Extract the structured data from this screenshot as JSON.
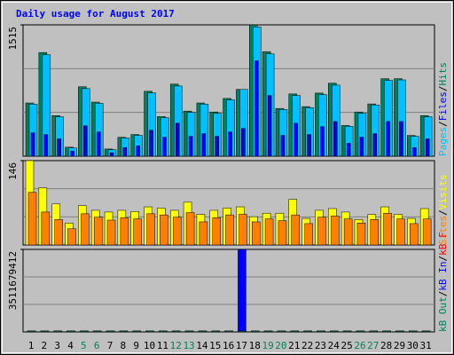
{
  "chart_data": [
    {
      "type": "bar",
      "title": "Daily usage for August 2017",
      "categories": [
        "1",
        "2",
        "3",
        "4",
        "5",
        "6",
        "7",
        "8",
        "9",
        "10",
        "11",
        "12",
        "13",
        "14",
        "15",
        "16",
        "17",
        "18",
        "19",
        "20",
        "21",
        "22",
        "23",
        "24",
        "25",
        "26",
        "27",
        "28",
        "29",
        "30",
        "31"
      ],
      "weekend_color": "#00805c",
      "weekends": [
        5,
        6,
        12,
        13,
        19,
        20,
        26,
        27
      ],
      "legend_separator": "/",
      "ylim": [
        0,
        1515
      ],
      "yticks": [
        1515
      ],
      "series": [
        {
          "name": "Hits",
          "color": "#00805c",
          "values": [
            614,
            1196,
            468,
            104,
            801,
            624,
            83,
            218,
            250,
            749,
            458,
            832,
            520,
            614,
            510,
            666,
            770,
            1515,
            1206,
            551,
            718,
            572,
            728,
            842,
            354,
            510,
            603,
            894,
            894,
            239,
            468
          ]
        },
        {
          "name": "Pages",
          "color": "#00c0ff",
          "values": [
            600,
            1170,
            455,
            95,
            780,
            610,
            75,
            210,
            240,
            730,
            445,
            810,
            505,
            600,
            495,
            650,
            770,
            1490,
            1180,
            540,
            700,
            560,
            710,
            820,
            345,
            495,
            590,
            875,
            880,
            230,
            455
          ]
        },
        {
          "name": "Files",
          "color": "#0000ff",
          "values": [
            270,
            250,
            200,
            60,
            350,
            280,
            40,
            100,
            120,
            300,
            220,
            380,
            230,
            260,
            230,
            280,
            320,
            1100,
            700,
            240,
            380,
            250,
            340,
            400,
            150,
            220,
            260,
            400,
            400,
            100,
            200
          ]
        }
      ]
    },
    {
      "type": "bar",
      "ylim": [
        0,
        146
      ],
      "yticks": [
        146
      ],
      "series": [
        {
          "name": "Visits",
          "color": "#ffff00",
          "values": [
            146,
            99,
            71,
            38,
            68,
            60,
            57,
            60,
            58,
            66,
            64,
            60,
            74,
            53,
            60,
            64,
            66,
            49,
            55,
            55,
            79,
            46,
            60,
            63,
            57,
            44,
            53,
            66,
            53,
            46,
            63
          ]
        },
        {
          "name": "Sites",
          "color": "#ff8000",
          "values": [
            91,
            57,
            44,
            28,
            54,
            48,
            43,
            47,
            45,
            54,
            52,
            48,
            56,
            40,
            47,
            52,
            53,
            40,
            45,
            42,
            52,
            37,
            48,
            50,
            45,
            38,
            44,
            55,
            45,
            37,
            45
          ]
        }
      ]
    },
    {
      "type": "bar",
      "ylim": [
        0,
        3511679412
      ],
      "yticks": [
        3511679412
      ],
      "series": [
        {
          "name": "kB F",
          "color": "#ff0000",
          "values": [
            0,
            0,
            0,
            0,
            0,
            0,
            0,
            0,
            0,
            0,
            0,
            0,
            0,
            0,
            0,
            0,
            0,
            0,
            0,
            0,
            0,
            0,
            0,
            0,
            0,
            0,
            0,
            0,
            0,
            0,
            0
          ]
        },
        {
          "name": "kB In",
          "color": "#0000ff",
          "values": [
            40000000,
            40000000,
            40000000,
            40000000,
            40000000,
            40000000,
            40000000,
            40000000,
            40000000,
            40000000,
            40000000,
            40000000,
            40000000,
            40000000,
            40000000,
            40000000,
            3511679412,
            40000000,
            40000000,
            40000000,
            40000000,
            40000000,
            40000000,
            40000000,
            40000000,
            40000000,
            40000000,
            40000000,
            40000000,
            40000000,
            40000000
          ]
        },
        {
          "name": "kB Out",
          "color": "#00805c",
          "values": [
            0,
            0,
            0,
            0,
            0,
            0,
            0,
            0,
            0,
            0,
            0,
            0,
            0,
            0,
            0,
            0,
            0,
            0,
            0,
            0,
            0,
            0,
            0,
            0,
            0,
            0,
            0,
            0,
            0,
            0,
            0
          ]
        }
      ]
    }
  ]
}
